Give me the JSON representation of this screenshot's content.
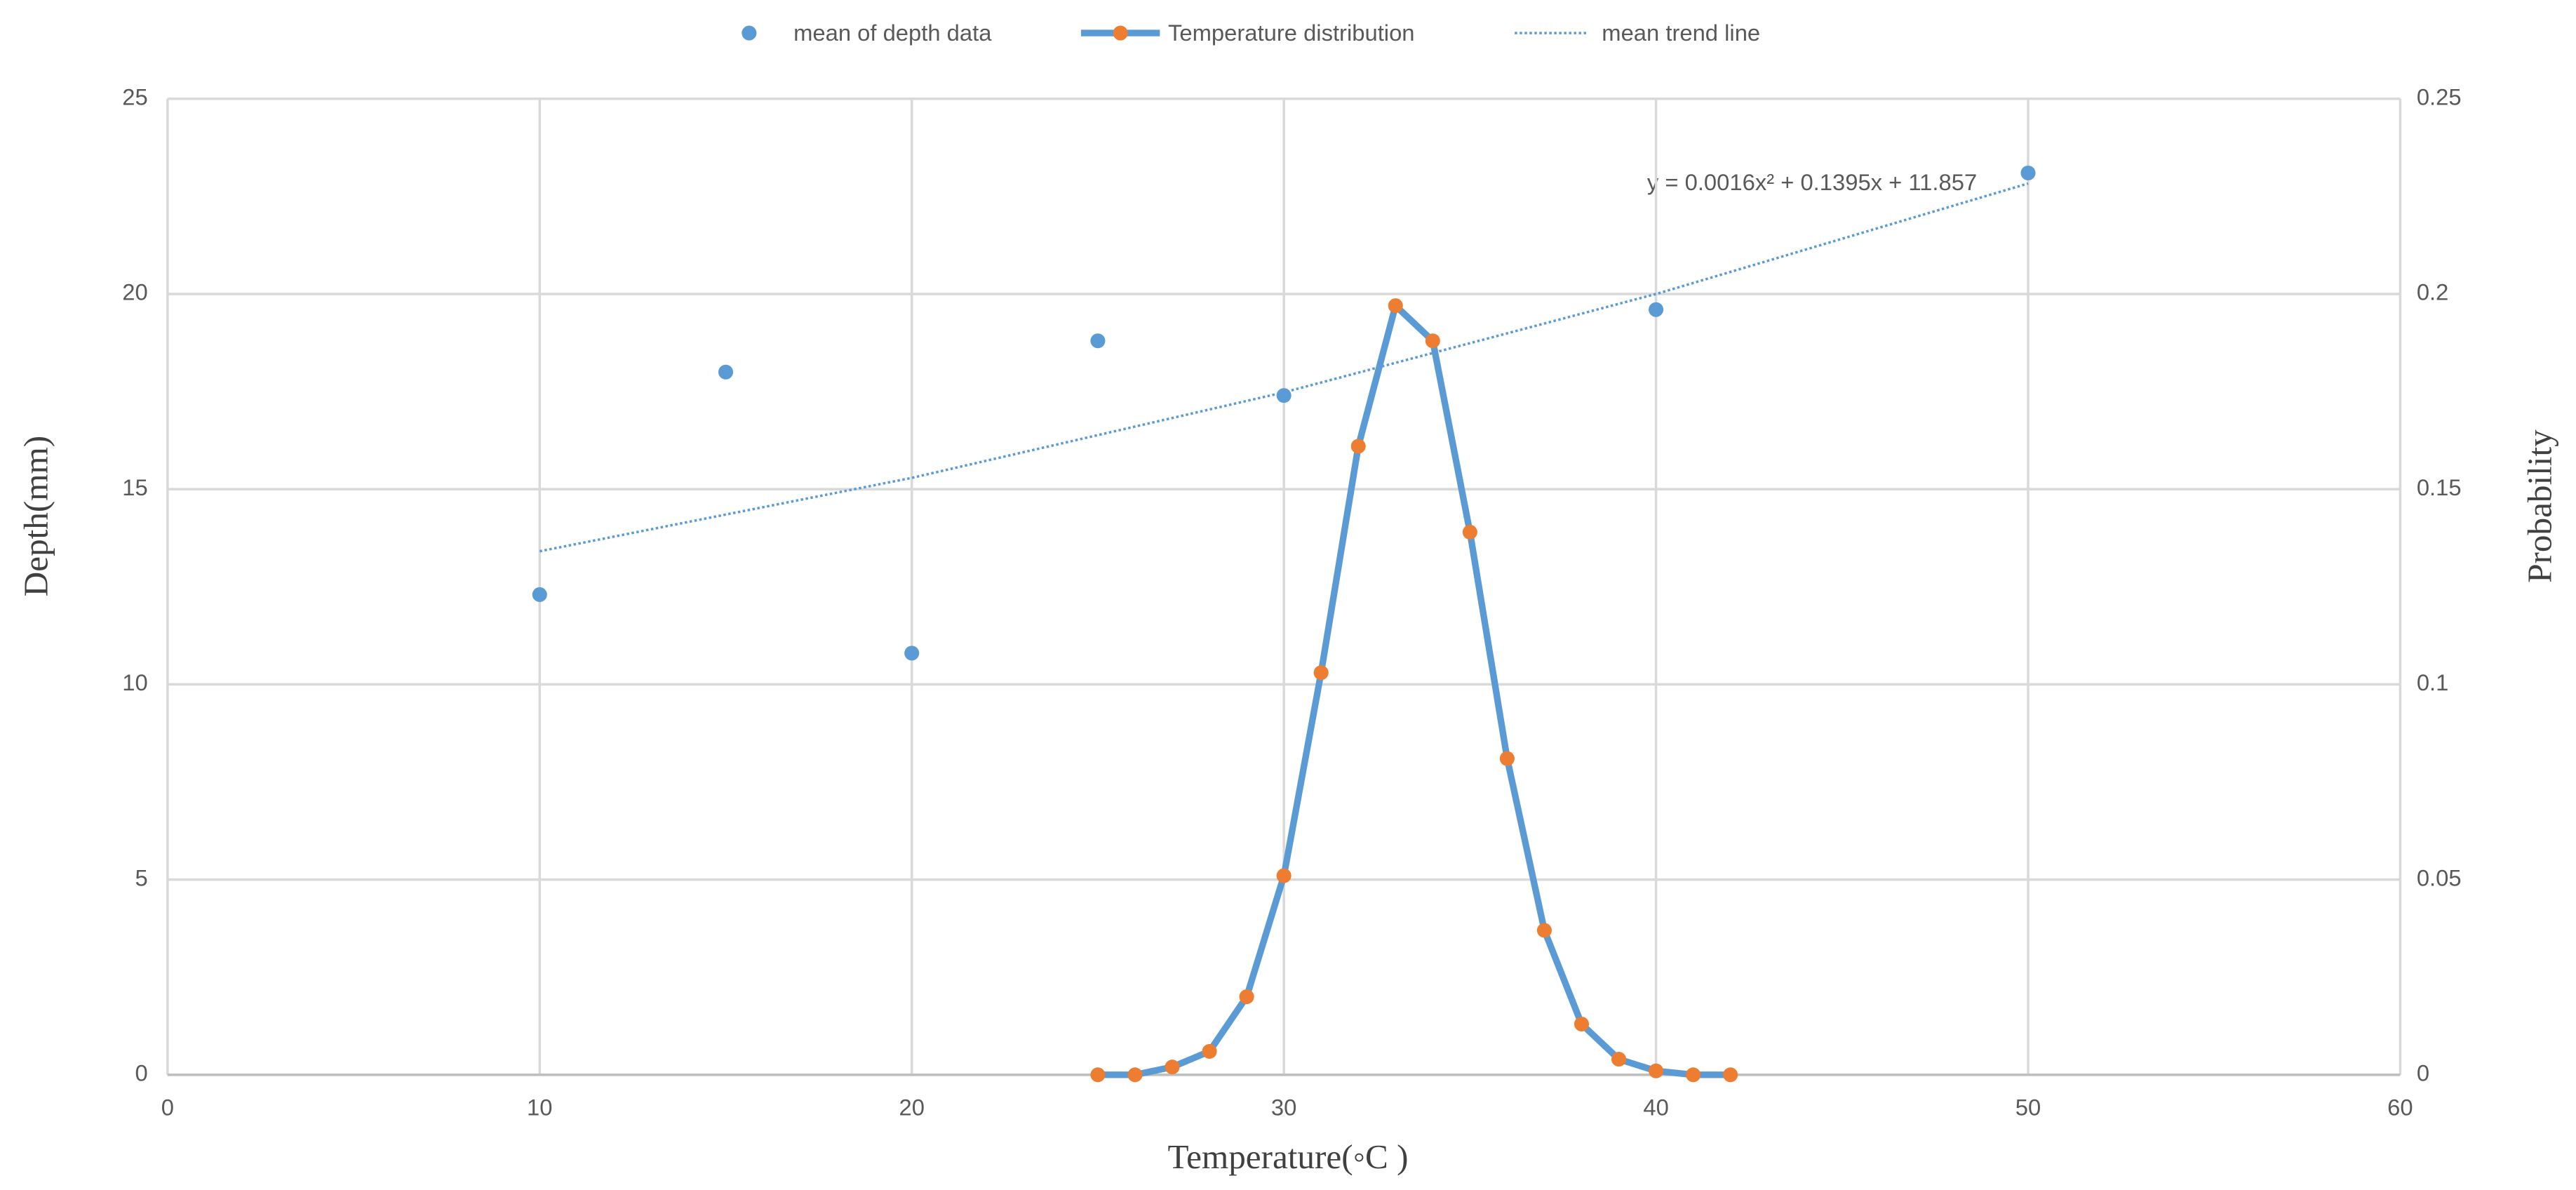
{
  "chart_data": {
    "type": "combo",
    "x_label": "Temperature(◦C )",
    "y_label": "Depth(mm)",
    "y2_label": "Probability",
    "annotation": "y = 0.0016x² + 0.1395x + 11.857",
    "xlim": [
      0,
      60
    ],
    "xticks": [
      0,
      10,
      20,
      30,
      40,
      50,
      60
    ],
    "ylim": [
      0,
      25
    ],
    "yticks": [
      0,
      5,
      10,
      15,
      20,
      25
    ],
    "y2lim": [
      0,
      0.25
    ],
    "y2ticks": [
      0,
      0.05,
      0.1,
      0.15,
      0.2,
      0.25
    ],
    "grid": true,
    "legend": "top",
    "series": [
      {
        "name": "mean of depth data",
        "type": "scatter",
        "color": "#5b9bd5",
        "x": [
          10,
          15,
          20,
          25,
          30,
          40,
          50
        ],
        "values": [
          12.3,
          18.0,
          10.8,
          18.8,
          17.4,
          19.6,
          23.1
        ]
      },
      {
        "name": "Temperature distribution",
        "type": "line",
        "axis": "y2",
        "color": "#5b9bd5",
        "marker_color": "#ed7d31",
        "x": [
          25,
          26,
          27,
          28,
          29,
          30,
          31,
          32,
          33,
          34,
          35,
          36,
          37,
          38,
          39,
          40,
          41,
          42
        ],
        "values": [
          0,
          0,
          0.002,
          0.006,
          0.02,
          0.051,
          0.103,
          0.161,
          0.197,
          0.188,
          0.139,
          0.081,
          0.037,
          0.013,
          0.004,
          0.001,
          0,
          0
        ]
      },
      {
        "name": "mean trend line",
        "type": "trendline",
        "color": "#5b9bd5",
        "x": [
          10,
          20,
          30,
          40,
          50
        ],
        "values": [
          13.41,
          15.29,
          17.48,
          20.0,
          22.83
        ]
      }
    ]
  }
}
